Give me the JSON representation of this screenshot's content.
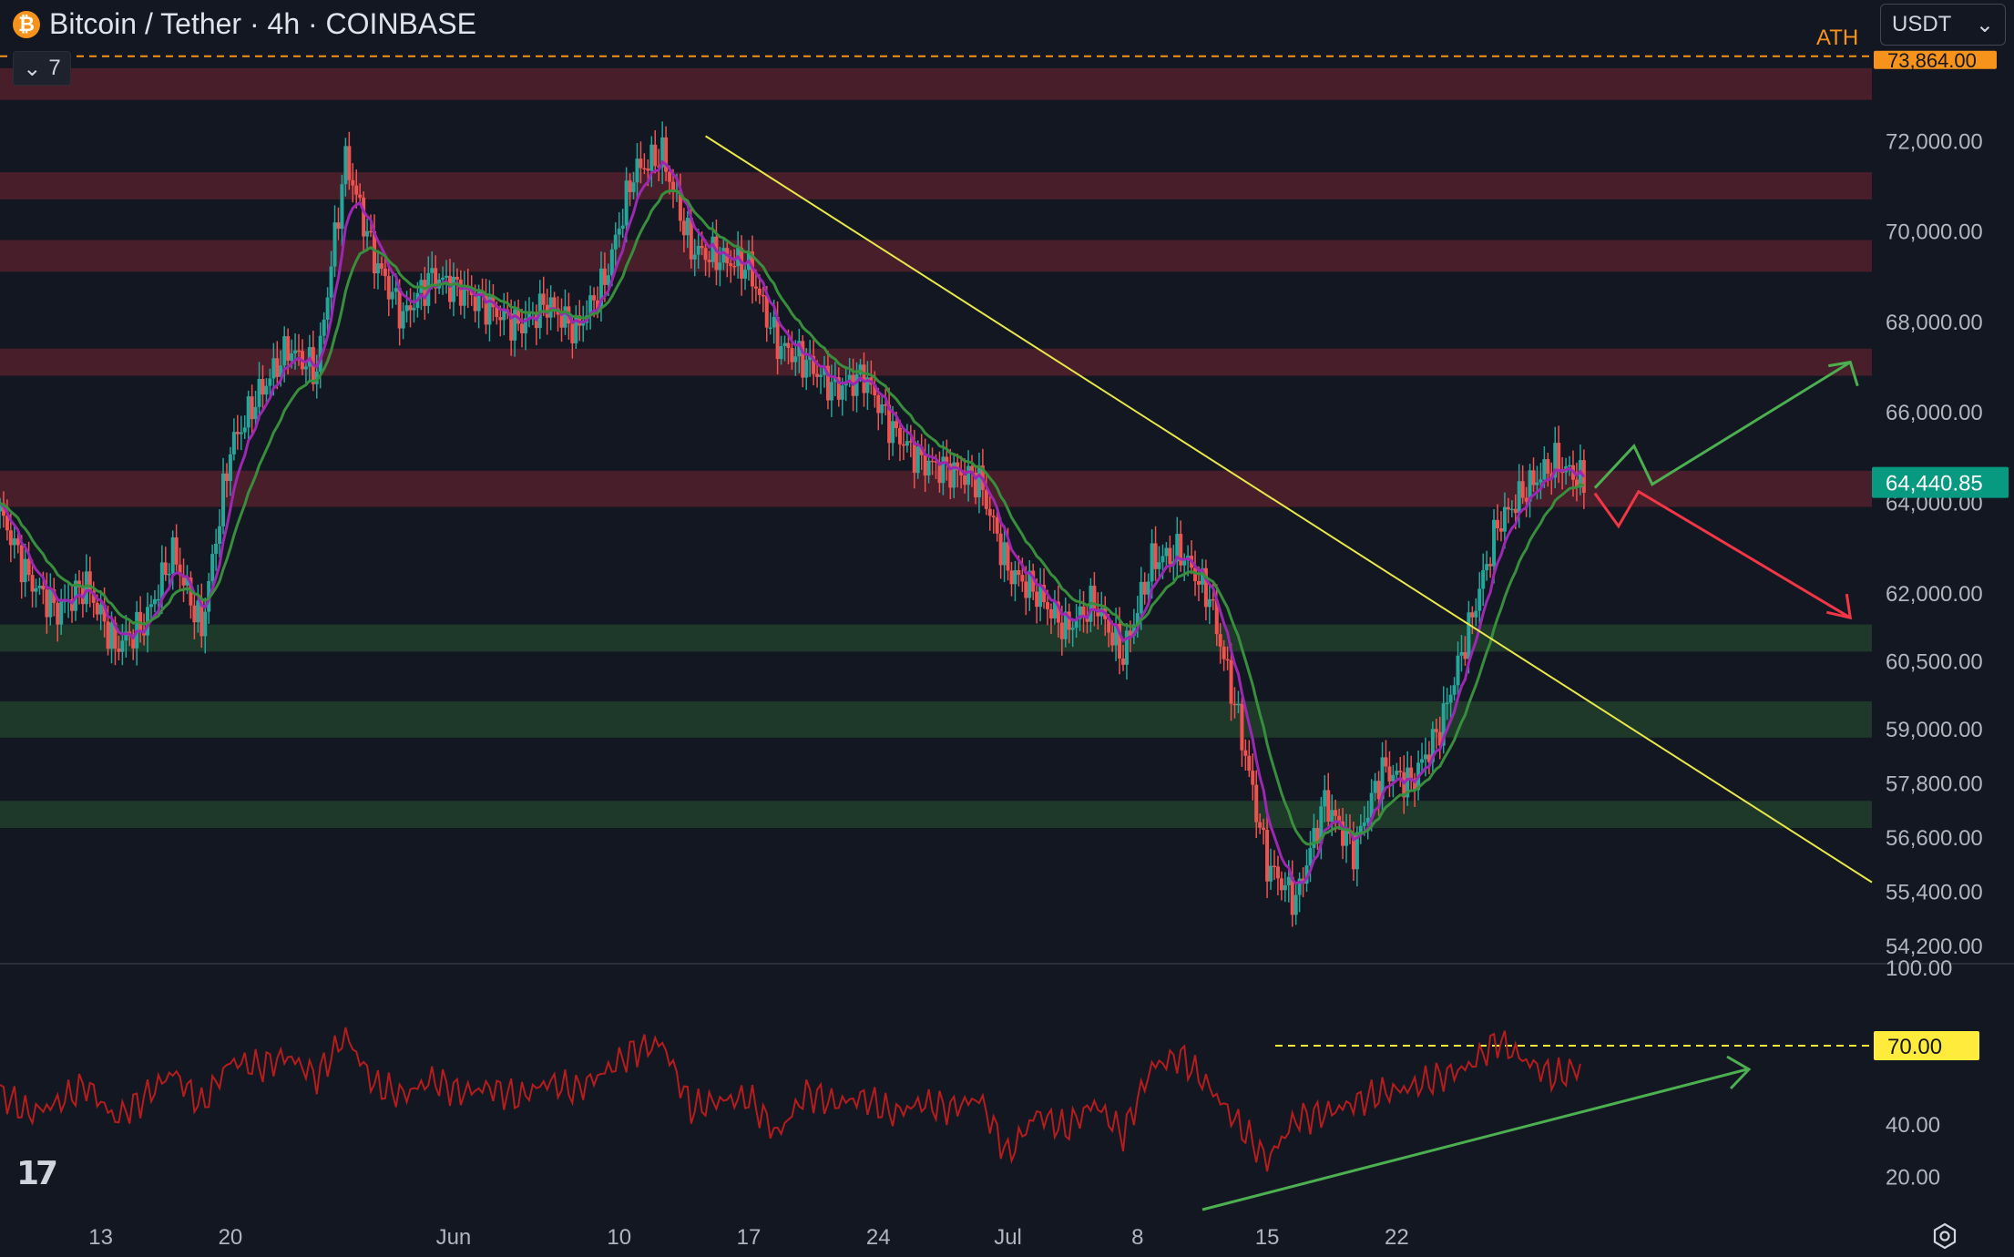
{
  "header": {
    "title": "Bitcoin / Tether · 4h · COINBASE",
    "icon": "bitcoin-icon",
    "indicator_toggle": "7",
    "currency": "USDT",
    "ath_label": "ATH",
    "ath_value": "73,864.00"
  },
  "colors": {
    "background": "#131722",
    "up": "#26a69a",
    "down": "#ef5350",
    "ema_fast": "#9c27b0",
    "ema_slow": "#388e3c",
    "resistance_zone": "#4a1f2a",
    "support_zone": "#1f3b2b",
    "trendline": "#e8e84a",
    "rsi": "#b71c1c",
    "price_label": "#089981",
    "rsi_label": "#ffeb3b",
    "ath": "#f7931a"
  },
  "chart_data": [
    {
      "type": "candlestick",
      "title": "Bitcoin / Tether · 4h · COINBASE",
      "xlabel": "",
      "ylabel": "",
      "x_ticks": [
        "13",
        "20",
        "Jun",
        "10",
        "17",
        "24",
        "Jul",
        "8",
        "15",
        "22"
      ],
      "y_ticks": [
        "72,000.00",
        "70,000.00",
        "68,000.00",
        "66,000.00",
        "64,000.00",
        "62,000.00",
        "60,500.00",
        "59,000.00",
        "57,800.00",
        "56,600.00",
        "55,400.00",
        "54,200.00"
      ],
      "last_price": "64,440.85",
      "ath": 73864,
      "resistance_zones": [
        [
          72900,
          73600
        ],
        [
          70700,
          71300
        ],
        [
          69100,
          69800
        ],
        [
          66800,
          67400
        ],
        [
          63900,
          64700
        ]
      ],
      "support_zones": [
        [
          60700,
          61300
        ],
        [
          58800,
          59600
        ],
        [
          56800,
          57400
        ]
      ],
      "trendline": {
        "from": [
          "Jun 07",
          72100
        ],
        "to": [
          "Jul 21",
          55600
        ]
      },
      "projections": {
        "bullish": "up arrow toward 67,000",
        "bearish": "down arrow toward 61,500"
      },
      "price_path": [
        [
          0,
          63800
        ],
        [
          4,
          62300
        ],
        [
          8,
          61600
        ],
        [
          12,
          62200
        ],
        [
          16,
          60800
        ],
        [
          20,
          61300
        ],
        [
          24,
          62900
        ],
        [
          28,
          61200
        ],
        [
          32,
          65200
        ],
        [
          36,
          66400
        ],
        [
          40,
          67400
        ],
        [
          44,
          66900
        ],
        [
          48,
          71600
        ],
        [
          52,
          69400
        ],
        [
          56,
          68100
        ],
        [
          60,
          69000
        ],
        [
          64,
          68700
        ],
        [
          68,
          68300
        ],
        [
          72,
          67900
        ],
        [
          76,
          68400
        ],
        [
          80,
          67800
        ],
        [
          84,
          68900
        ],
        [
          88,
          71300
        ],
        [
          92,
          71700
        ],
        [
          96,
          69600
        ],
        [
          100,
          69400
        ],
        [
          104,
          69200
        ],
        [
          108,
          67500
        ],
        [
          112,
          67100
        ],
        [
          116,
          66500
        ],
        [
          120,
          66800
        ],
        [
          124,
          65600
        ],
        [
          128,
          64900
        ],
        [
          132,
          64700
        ],
        [
          136,
          64500
        ],
        [
          140,
          62500
        ],
        [
          144,
          62000
        ],
        [
          148,
          61200
        ],
        [
          152,
          61800
        ],
        [
          156,
          60600
        ],
        [
          160,
          62700
        ],
        [
          164,
          62900
        ],
        [
          168,
          61900
        ],
        [
          172,
          59200
        ],
        [
          176,
          56000
        ],
        [
          180,
          55200
        ],
        [
          184,
          57400
        ],
        [
          188,
          56300
        ],
        [
          192,
          58100
        ],
        [
          196,
          57800
        ],
        [
          200,
          59000
        ],
        [
          204,
          61200
        ],
        [
          208,
          63500
        ],
        [
          212,
          64300
        ],
        [
          216,
          64900
        ],
        [
          220,
          64440.85
        ]
      ],
      "x_domain": [
        0,
        260
      ],
      "y_domain": [
        53800,
        73900
      ]
    },
    {
      "type": "line",
      "title": "",
      "y_ticks": [
        "100.00",
        "70.00",
        "40.00",
        "20.00"
      ],
      "overbought_label": "70.00",
      "y_domain": [
        10,
        100
      ],
      "series": [
        {
          "values": [
            [
              0,
              52
            ],
            [
              4,
              44
            ],
            [
              8,
              48
            ],
            [
              12,
              55
            ],
            [
              16,
              42
            ],
            [
              20,
              50
            ],
            [
              24,
              60
            ],
            [
              28,
              47
            ],
            [
              32,
              64
            ],
            [
              36,
              62
            ],
            [
              40,
              66
            ],
            [
              44,
              58
            ],
            [
              48,
              74
            ],
            [
              52,
              55
            ],
            [
              56,
              51
            ],
            [
              60,
              57
            ],
            [
              64,
              52
            ],
            [
              68,
              54
            ],
            [
              72,
              50
            ],
            [
              76,
              56
            ],
            [
              80,
              53
            ],
            [
              84,
              60
            ],
            [
              88,
              68
            ],
            [
              92,
              71
            ],
            [
              96,
              46
            ],
            [
              100,
              49
            ],
            [
              104,
              50
            ],
            [
              108,
              36
            ],
            [
              112,
              52
            ],
            [
              116,
              48
            ],
            [
              120,
              50
            ],
            [
              124,
              44
            ],
            [
              128,
              48
            ],
            [
              132,
              46
            ],
            [
              136,
              50
            ],
            [
              140,
              28
            ],
            [
              144,
              44
            ],
            [
              148,
              38
            ],
            [
              152,
              48
            ],
            [
              156,
              36
            ],
            [
              160,
              62
            ],
            [
              164,
              66
            ],
            [
              168,
              54
            ],
            [
              172,
              40
            ],
            [
              176,
              26
            ],
            [
              180,
              42
            ],
            [
              184,
              44
            ],
            [
              188,
              48
            ],
            [
              192,
              52
            ],
            [
              196,
              54
            ],
            [
              200,
              58
            ],
            [
              204,
              62
            ],
            [
              208,
              72
            ],
            [
              212,
              64
            ],
            [
              216,
              58
            ],
            [
              220,
              62
            ]
          ]
        }
      ],
      "arrow": "rising green trend arrow under RSI"
    }
  ]
}
